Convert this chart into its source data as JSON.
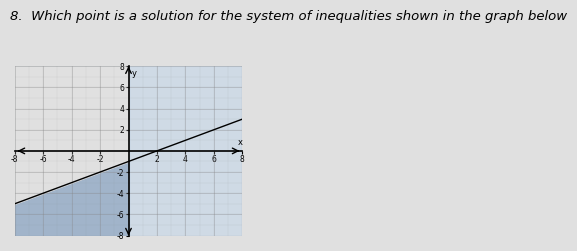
{
  "title_text": "8.  Which point is a solution for the system of inequalities shown in the graph below",
  "title_fontsize": 9.5,
  "title_style": "italic",
  "xlim": [
    -8,
    8
  ],
  "ylim": [
    -8,
    8
  ],
  "xticks": [
    -8,
    -6,
    -4,
    -2,
    2,
    4,
    6,
    8
  ],
  "yticks": [
    -8,
    -6,
    -4,
    -2,
    2,
    4,
    6,
    8
  ],
  "line1_slope": 0.5,
  "line1_intercept": -1,
  "shade_dark": "#9ab0c8",
  "shade_light": "#c8d8e8",
  "shade_alpha_dark": 0.9,
  "shade_alpha_light": 0.7,
  "grid_color": "#888888",
  "plot_bg_left": "#a0b8cc",
  "plot_bg_right": "#c0d4e4",
  "fig_bg": "#e0e0e0",
  "tick_fontsize": 5.5
}
